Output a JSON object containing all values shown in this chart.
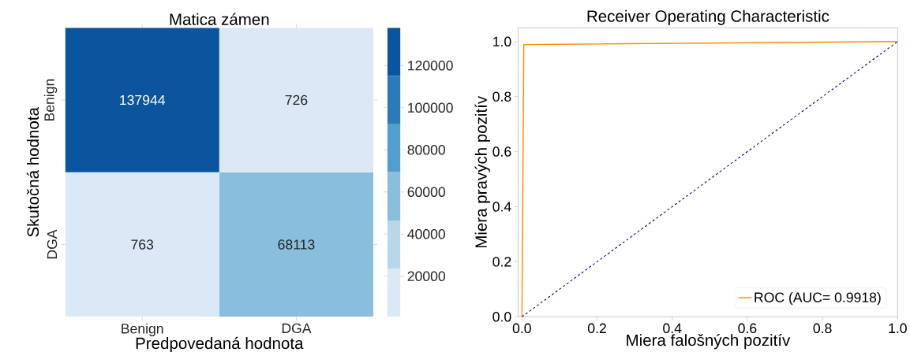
{
  "chart_data": [
    {
      "type": "heatmap",
      "title": "Matica zámen",
      "xlabel": "Predpovedaná hodnota",
      "ylabel": "Skutočná hodnota",
      "categories": [
        "Benign",
        "DGA"
      ],
      "y_categories": [
        "Benign",
        "DGA"
      ],
      "cells": [
        [
          137944,
          726
        ],
        [
          763,
          68113
        ]
      ],
      "data_labels": true,
      "clim": [
        726,
        137944
      ],
      "cticks": [
        20000,
        40000,
        60000,
        80000,
        100000,
        120000
      ],
      "colors": [
        "#dbe9f6",
        "#bad6eb",
        "#89bedc",
        "#539ecd",
        "#2b7bba",
        "#0b559f"
      ]
    },
    {
      "type": "line",
      "title": "Receiver Operating Characteristic",
      "xlabel": "Miera falošných pozitív",
      "ylabel": "Miera pravých pozitív",
      "xlim": [
        -0.01,
        1.0
      ],
      "ylim": [
        0,
        1.05
      ],
      "xticks": [
        {
          "value": 0,
          "label": "0.0"
        },
        0.2,
        0.4,
        0.6,
        0.8,
        {
          "value": 1,
          "label": "1.0"
        }
      ],
      "yticks": [
        {
          "value": 0,
          "label": "0.0"
        },
        0.2,
        0.4,
        0.6,
        0.8,
        {
          "value": 1,
          "label": "1.0"
        }
      ],
      "legend": "bottom right",
      "grid": false,
      "series": [
        {
          "name": "ROC (AUC= 0.9918)",
          "color": "#ff8c00",
          "x": [
            0,
            0.005,
            1
          ],
          "values": [
            0,
            0.989,
            1
          ]
        },
        {
          "color": "#00008b",
          "line_style": "dashed",
          "x": [
            0,
            1
          ],
          "values": [
            0,
            1
          ]
        }
      ]
    }
  ]
}
